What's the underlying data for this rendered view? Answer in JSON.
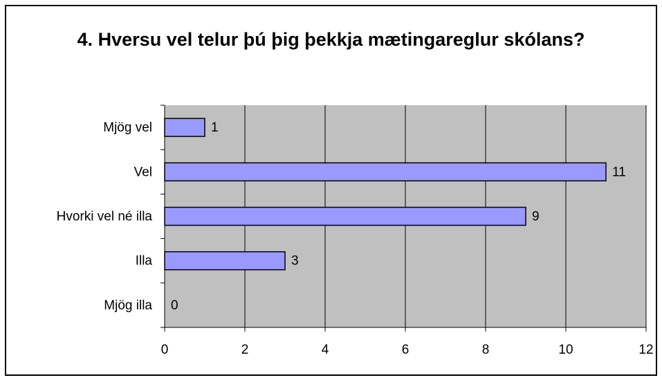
{
  "chart_data": {
    "type": "bar",
    "orientation": "horizontal",
    "title": "4. Hversu vel telur þú þig þekkja mætingareglur skólans?",
    "categories": [
      "Mjög vel",
      "Vel",
      "Hvorki vel né illa",
      "Illa",
      "Mjög illa"
    ],
    "values": [
      1,
      11,
      9,
      3,
      0
    ],
    "color": "#9999ff",
    "xlim": [
      0,
      12
    ],
    "xticks": [
      0,
      2,
      4,
      6,
      8,
      10,
      12
    ],
    "grid": true
  }
}
